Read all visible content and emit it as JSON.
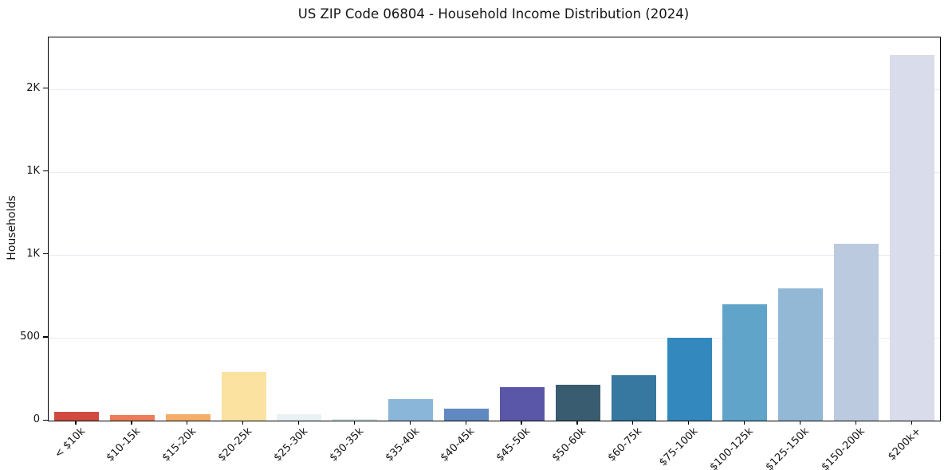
{
  "chart_data": {
    "type": "bar",
    "title": "US ZIP Code 06804 - Household Income Distribution (2024)",
    "xlabel": "",
    "ylabel": "Households",
    "categories": [
      "< $10k",
      "$10-15k",
      "$15-20k",
      "$20-25k",
      "$25-30k",
      "$30-35k",
      "$35-40k",
      "$40-45k",
      "$45-50k",
      "$50-60k",
      "$60-75k",
      "$75-100k",
      "$100-125k",
      "$125-150k",
      "$150-200k",
      "$200k+"
    ],
    "values": [
      55,
      35,
      40,
      295,
      40,
      10,
      130,
      70,
      200,
      215,
      275,
      500,
      700,
      795,
      1065,
      2205
    ],
    "bar_colors": [
      "#d04a41",
      "#ec7b59",
      "#f5ae69",
      "#fbe2a1",
      "#e8f1f3",
      "#dbe9ed",
      "#8ab6da",
      "#6089c1",
      "#5a57a8",
      "#3a5c71",
      "#36789f",
      "#3389bd",
      "#60a4ca",
      "#92b8d6",
      "#bccadf",
      "#d9dcea"
    ],
    "ylim": [
      0,
      2310
    ],
    "yticks": {
      "values": [
        0,
        500,
        1000,
        1500,
        2000
      ],
      "labels": [
        "0",
        "500",
        "1K",
        "1K",
        "2K"
      ]
    },
    "grid": "horizontal",
    "grid_color": "#eaeaf2",
    "spine_color": "#000000",
    "background_color": "#ffffff",
    "legend": "none"
  }
}
